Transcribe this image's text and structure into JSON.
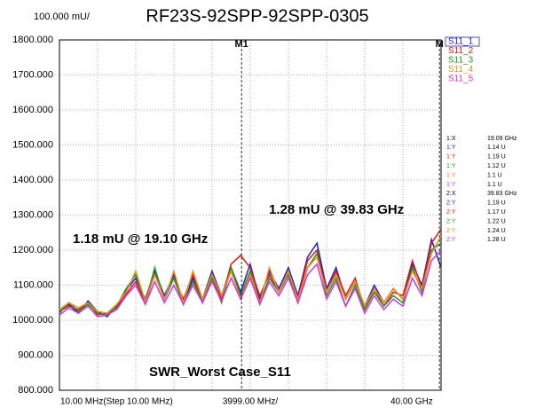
{
  "chart_data": {
    "type": "line",
    "scale_label": "100.000 mU/",
    "title": "RF23S-92SPP-92SPP-0305",
    "x_start_label": "10.00 MHz(Step 10.00 MHz)",
    "x_scale_label": "3999.00 MHz/",
    "x_stop_label": "40.00 GHz",
    "xlim": [
      0.01,
      40
    ],
    "xticks": [
      0.01,
      4.009,
      8.008,
      12.007,
      16.006,
      20.005,
      24.004,
      28.003,
      32.002,
      36.001,
      40
    ],
    "ylim": [
      800,
      1800
    ],
    "yticks": [
      {
        "value": 800,
        "label": "800.000"
      },
      {
        "value": 900,
        "label": "900.000"
      },
      {
        "value": 1000,
        "label": "1000.000"
      },
      {
        "value": 1100,
        "label": "1100.000"
      },
      {
        "value": 1200,
        "label": "1200.000"
      },
      {
        "value": 1300,
        "label": "1300.000"
      },
      {
        "value": 1400,
        "label": "1400.000"
      },
      {
        "value": 1500,
        "label": "1500.000"
      },
      {
        "value": 1600,
        "label": "1600.000"
      },
      {
        "value": 1700,
        "label": "1700.000"
      },
      {
        "value": 1800,
        "label": "1800.000"
      }
    ],
    "grid": true,
    "x": [
      0.01,
      1,
      2,
      3,
      4,
      5,
      6,
      7,
      8,
      9,
      10,
      11,
      12,
      13,
      14,
      15,
      16,
      17,
      18,
      19,
      20,
      21,
      22,
      23,
      24,
      25,
      26,
      27,
      28,
      29,
      30,
      31,
      32,
      33,
      34,
      35,
      36,
      37,
      38,
      39,
      40
    ],
    "series": [
      {
        "name": "S11_1",
        "color": "#1f1fd0",
        "values": [
          1030,
          1045,
          1020,
          1055,
          1025,
          1010,
          1040,
          1085,
          1120,
          1060,
          1140,
          1070,
          1130,
          1050,
          1120,
          1060,
          1140,
          1070,
          1150,
          1080,
          1160,
          1060,
          1140,
          1090,
          1150,
          1070,
          1180,
          1220,
          1090,
          1150,
          1060,
          1110,
          1040,
          1100,
          1050,
          1090,
          1060,
          1160,
          1100,
          1230,
          1150
        ]
      },
      {
        "name": "S11_2",
        "color": "#e01818",
        "values": [
          1025,
          1040,
          1030,
          1050,
          1015,
          1020,
          1035,
          1075,
          1110,
          1050,
          1130,
          1060,
          1120,
          1060,
          1130,
          1050,
          1130,
          1060,
          1160,
          1185,
          1150,
          1070,
          1130,
          1080,
          1140,
          1060,
          1170,
          1200,
          1080,
          1140,
          1070,
          1120,
          1030,
          1090,
          1040,
          1080,
          1070,
          1170,
          1090,
          1220,
          1260
        ]
      },
      {
        "name": "S11_3",
        "color": "#1a9a1a",
        "values": [
          1020,
          1050,
          1025,
          1045,
          1020,
          1015,
          1040,
          1090,
          1130,
          1050,
          1150,
          1060,
          1120,
          1045,
          1110,
          1055,
          1120,
          1050,
          1150,
          1070,
          1140,
          1050,
          1120,
          1080,
          1130,
          1050,
          1150,
          1190,
          1070,
          1120,
          1040,
          1100,
          1030,
          1080,
          1040,
          1070,
          1050,
          1150,
          1080,
          1200,
          1220
        ]
      },
      {
        "name": "S11_4",
        "color": "#f08c1e",
        "values": [
          1030,
          1050,
          1035,
          1050,
          1025,
          1020,
          1045,
          1080,
          1140,
          1055,
          1130,
          1060,
          1140,
          1050,
          1140,
          1060,
          1130,
          1070,
          1140,
          1060,
          1130,
          1050,
          1150,
          1080,
          1140,
          1060,
          1150,
          1180,
          1080,
          1130,
          1060,
          1110,
          1040,
          1090,
          1050,
          1090,
          1060,
          1140,
          1090,
          1190,
          1240
        ]
      },
      {
        "name": "S11_5",
        "color": "#e030e0",
        "values": [
          1015,
          1035,
          1020,
          1040,
          1010,
          1015,
          1030,
          1070,
          1100,
          1045,
          1110,
          1050,
          1100,
          1045,
          1100,
          1050,
          1110,
          1055,
          1120,
          1060,
          1120,
          1045,
          1110,
          1070,
          1120,
          1050,
          1130,
          1160,
          1060,
          1110,
          1040,
          1090,
          1020,
          1070,
          1030,
          1060,
          1040,
          1120,
          1070,
          1170,
          1200
        ]
      }
    ],
    "markers": [
      {
        "label": "M1",
        "x": 19.09
      },
      {
        "label": "M",
        "x": 39.83
      }
    ],
    "readout": [
      {
        "label": "1:X",
        "value": "19.09 GHz",
        "color": "#000000"
      },
      {
        "label": "1:Y",
        "value": "1.14 U",
        "color": "#1f1fd0"
      },
      {
        "label": "1:Y",
        "value": "1.19 U",
        "color": "#e01818"
      },
      {
        "label": "1:Y",
        "value": "1.12 U",
        "color": "#1a9a1a"
      },
      {
        "label": "1:Y",
        "value": "1.1 U",
        "color": "#f08c1e"
      },
      {
        "label": "1:Y",
        "value": "1.1 U",
        "color": "#e030e0"
      },
      {
        "label": "2:X",
        "value": "39.83 GHz",
        "color": "#000000"
      },
      {
        "label": "2:Y",
        "value": "1.19 U",
        "color": "#1f1fd0"
      },
      {
        "label": "2:Y",
        "value": "1.17 U",
        "color": "#e01818"
      },
      {
        "label": "2:Y",
        "value": "1.22 U",
        "color": "#1a9a1a"
      },
      {
        "label": "2:Y",
        "value": "1.24 U",
        "color": "#f08c1e"
      },
      {
        "label": "2:Y",
        "value": "1.28 U",
        "color": "#e030e0"
      }
    ],
    "annotations": [
      "1.18 mU @ 19.10 GHz",
      "1.28 mU @ 39.83 GHz",
      "SWR_Worst Case_S11"
    ]
  }
}
